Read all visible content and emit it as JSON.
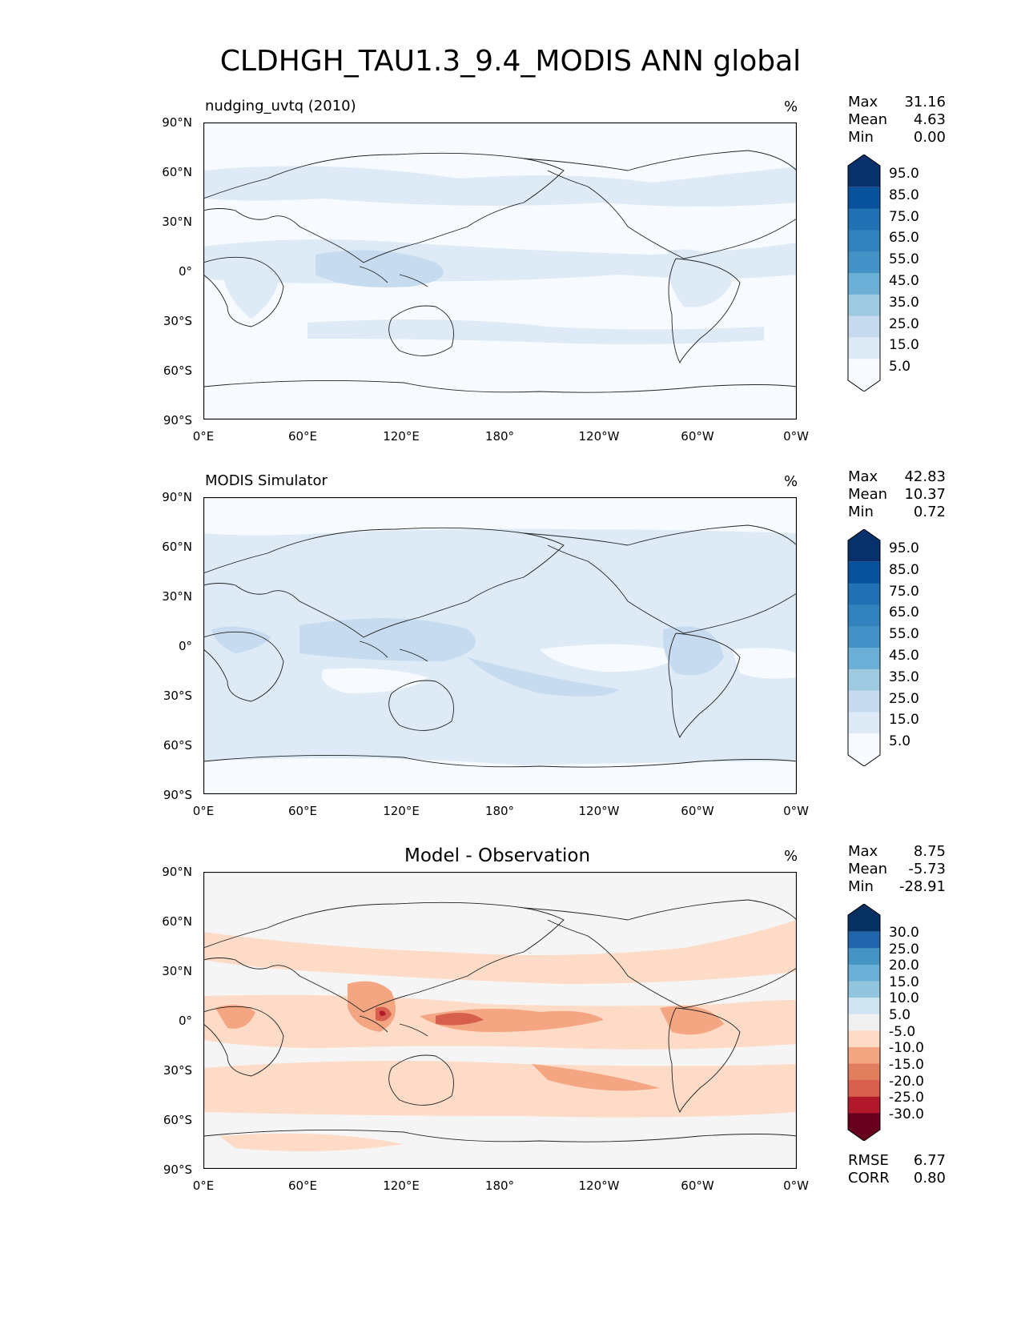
{
  "figure_title": "CLDHGH_TAU1.3_9.4_MODIS ANN global",
  "chart_data": [
    {
      "type": "map",
      "title": "nudging_uvtq (2010)",
      "units": "%",
      "stats": {
        "Max": "31.16",
        "Mean": "4.63",
        "Min": "0.00"
      },
      "lat_ticks": [
        "90°N",
        "60°N",
        "30°N",
        "0°",
        "30°S",
        "60°S",
        "90°S"
      ],
      "lon_ticks": [
        "0°E",
        "60°E",
        "120°E",
        "180°",
        "120°W",
        "60°W",
        "0°W"
      ],
      "colorbar": {
        "ticks": [
          "95.0",
          "85.0",
          "75.0",
          "65.0",
          "55.0",
          "45.0",
          "35.0",
          "25.0",
          "15.0",
          "5.0"
        ],
        "colors": [
          "#08306b",
          "#08519c",
          "#2171b5",
          "#3182bd",
          "#4292c6",
          "#6baed6",
          "#9ecae1",
          "#c6dbef",
          "#deebf7",
          "#f7fbff"
        ]
      }
    },
    {
      "type": "map",
      "title": "MODIS Simulator",
      "units": "%",
      "stats": {
        "Max": "42.83",
        "Mean": "10.37",
        "Min": "0.72"
      },
      "lat_ticks": [
        "90°N",
        "60°N",
        "30°N",
        "0°",
        "30°S",
        "60°S",
        "90°S"
      ],
      "lon_ticks": [
        "0°E",
        "60°E",
        "120°E",
        "180°",
        "120°W",
        "60°W",
        "0°W"
      ],
      "colorbar": {
        "ticks": [
          "95.0",
          "85.0",
          "75.0",
          "65.0",
          "55.0",
          "45.0",
          "35.0",
          "25.0",
          "15.0",
          "5.0"
        ],
        "colors": [
          "#08306b",
          "#08519c",
          "#2171b5",
          "#3182bd",
          "#4292c6",
          "#6baed6",
          "#9ecae1",
          "#c6dbef",
          "#deebf7",
          "#f7fbff"
        ]
      }
    },
    {
      "type": "map",
      "title": "Model - Observation",
      "units": "%",
      "stats": {
        "Max": "8.75",
        "Mean": "-5.73",
        "Min": "-28.91"
      },
      "lat_ticks": [
        "90°N",
        "60°N",
        "30°N",
        "0°",
        "30°S",
        "60°S",
        "90°S"
      ],
      "lon_ticks": [
        "0°E",
        "60°E",
        "120°E",
        "180°",
        "120°W",
        "60°W",
        "0°W"
      ],
      "colorbar": {
        "ticks": [
          "30.0",
          "25.0",
          "20.0",
          "15.0",
          "10.0",
          "5.0",
          "-5.0",
          "-10.0",
          "-15.0",
          "-20.0",
          "-25.0",
          "-30.0"
        ],
        "colors": [
          "#053061",
          "#2166ac",
          "#4393c3",
          "#6baed6",
          "#92c5de",
          "#d1e5f0",
          "#f0f0f0",
          "#fddbc7",
          "#f4a582",
          "#e07e5e",
          "#d6604d",
          "#b2182b",
          "#67001f"
        ]
      },
      "metrics": {
        "RMSE": "6.77",
        "CORR": "0.80"
      }
    }
  ],
  "colors": {
    "panel1_bg": "#f7fbff",
    "panel1_band": "#deebf7",
    "panel1_core": "#c6dbef",
    "panel2_bg": "#deebf7",
    "panel2_low": "#f7fbff",
    "panel2_core": "#c6dbef",
    "panel3_bg": "#f5f5f5",
    "panel3_light": "#fddbc7",
    "panel3_mid": "#f4a582",
    "panel3_strong": "#d6604d",
    "panel3_max": "#b2182b"
  }
}
